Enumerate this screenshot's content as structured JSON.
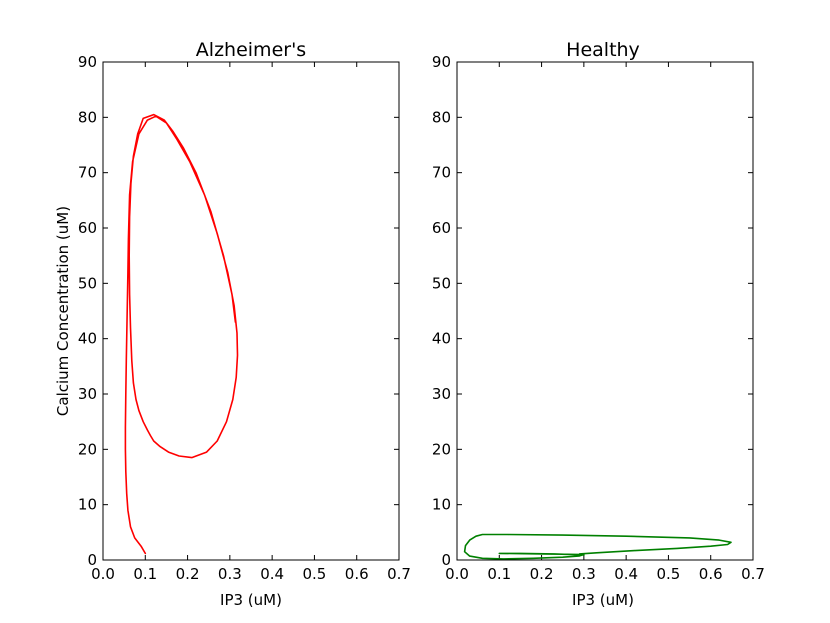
{
  "chart_data": [
    {
      "type": "line",
      "title": "Alzheimer's",
      "xlabel": "IP3 (uM)",
      "ylabel": "Calcium Concentration (uM)",
      "xlim": [
        0.0,
        0.7
      ],
      "ylim": [
        0,
        90
      ],
      "xticks": [
        "0.0",
        "0.1",
        "0.2",
        "0.3",
        "0.4",
        "0.5",
        "0.6",
        "0.7"
      ],
      "yticks": [
        "0",
        "10",
        "20",
        "30",
        "40",
        "50",
        "60",
        "70",
        "80",
        "90"
      ],
      "grid": false,
      "color": "#ff0000",
      "series": [
        {
          "x": [
            0.1,
            0.09,
            0.075,
            0.065,
            0.059,
            0.056,
            0.054,
            0.053,
            0.053,
            0.054,
            0.055,
            0.057,
            0.059,
            0.06,
            0.063,
            0.07,
            0.085,
            0.105,
            0.125,
            0.15,
            0.175,
            0.205,
            0.24,
            0.27,
            0.295,
            0.31,
            0.317,
            0.318,
            0.315,
            0.307,
            0.292,
            0.27,
            0.245,
            0.21,
            0.18,
            0.155,
            0.135,
            0.12,
            0.112,
            0.105,
            0.095,
            0.085,
            0.078,
            0.072,
            0.068,
            0.065,
            0.063,
            0.062,
            0.063,
            0.066,
            0.072,
            0.082,
            0.095,
            0.12,
            0.145,
            0.165,
            0.19,
            0.22,
            0.255,
            0.285,
            0.305,
            0.313
          ],
          "y": [
            1.2,
            2.5,
            4.0,
            6.0,
            9.0,
            12.0,
            16.0,
            20.0,
            24.0,
            30.0,
            36.0,
            44.0,
            52.0,
            58.0,
            66.0,
            72.0,
            77.0,
            79.5,
            80.2,
            79.0,
            76.0,
            72.0,
            66.0,
            59.0,
            52.0,
            46.0,
            41.0,
            37.0,
            33.0,
            29.0,
            25.0,
            21.5,
            19.5,
            18.5,
            18.8,
            19.5,
            20.5,
            21.5,
            22.5,
            23.5,
            25.0,
            27.0,
            29.0,
            32.0,
            36.0,
            42.0,
            48.0,
            55.0,
            62.0,
            68.0,
            73.0,
            77.0,
            79.8,
            80.5,
            79.5,
            77.5,
            74.5,
            70.0,
            63.0,
            55.0,
            48.0,
            43.0
          ]
        }
      ]
    },
    {
      "type": "line",
      "title": "Healthy",
      "xlabel": "IP3 (uM)",
      "ylabel": "",
      "xlim": [
        0.0,
        0.7
      ],
      "ylim": [
        0,
        90
      ],
      "xticks": [
        "0.0",
        "0.1",
        "0.2",
        "0.3",
        "0.4",
        "0.5",
        "0.6",
        "0.7"
      ],
      "yticks": [
        "0",
        "10",
        "20",
        "30",
        "40",
        "50",
        "60",
        "70",
        "80",
        "90"
      ],
      "grid": false,
      "color": "#008000",
      "series": [
        {
          "x": [
            0.1,
            0.2,
            0.3,
            0.29,
            0.25,
            0.18,
            0.11,
            0.06,
            0.03,
            0.018,
            0.02,
            0.03,
            0.045,
            0.06,
            0.12,
            0.25,
            0.4,
            0.55,
            0.62,
            0.648,
            0.64,
            0.6,
            0.52,
            0.42,
            0.33,
            0.29,
            0.3,
            0.23,
            0.15,
            0.1
          ],
          "y": [
            1.2,
            1.1,
            1.0,
            0.75,
            0.5,
            0.3,
            0.2,
            0.3,
            0.7,
            1.5,
            2.6,
            3.6,
            4.3,
            4.6,
            4.6,
            4.5,
            4.3,
            4.0,
            3.6,
            3.2,
            2.8,
            2.5,
            2.1,
            1.7,
            1.3,
            1.1,
            0.9,
            1.1,
            1.2,
            1.2
          ]
        }
      ]
    }
  ]
}
